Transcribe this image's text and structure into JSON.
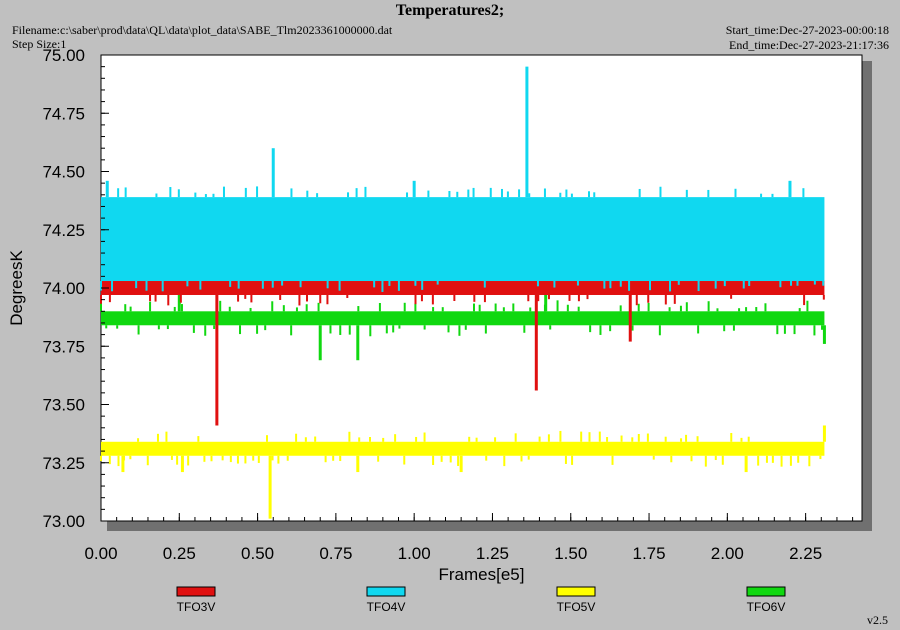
{
  "header": {
    "title": "Temperatures2;",
    "filename": "Filename:c:\\saber\\prod\\data\\QL\\data\\plot_data\\SABE_Tlm2023361000000.dat",
    "step_size": "Step Size:1",
    "start_time": "Start_time:Dec-27-2023-00:00:18",
    "end_time": "End_time:Dec-27-2023-21:17:36",
    "version": "v2.5"
  },
  "colors": {
    "background": "#c0c0c0",
    "plot_area": "#ffffff",
    "TFO3V": "#e01010",
    "TFO4V": "#10d8f0",
    "TFO5V": "#ffff00",
    "TFO6V": "#10d810"
  },
  "chart_data": {
    "type": "line",
    "title": "Temperatures2;",
    "xlabel": "Frames[e5]",
    "ylabel": "DegreesK",
    "xlim": [
      0,
      2.43
    ],
    "ylim": [
      73.0,
      75.0
    ],
    "x_ticks": [
      "0.00",
      "0.25",
      "0.50",
      "0.75",
      "1.00",
      "1.25",
      "1.50",
      "1.75",
      "2.00",
      "2.25"
    ],
    "y_ticks": [
      "73.00",
      "73.25",
      "73.50",
      "73.75",
      "74.00",
      "74.25",
      "74.50",
      "74.75",
      "75.00"
    ],
    "grid": false,
    "legend_position": "bottom",
    "series": [
      {
        "name": "TFO3V",
        "x_range": [
          0,
          2.31
        ],
        "band": [
          73.97,
          74.03
        ],
        "spikes": [
          {
            "x": 0.37,
            "y": 73.41
          },
          {
            "x": 1.39,
            "y": 73.56
          },
          {
            "x": 1.69,
            "y": 73.77
          },
          {
            "x": 0.55,
            "y": 74.1
          },
          {
            "x": 1.27,
            "y": 74.1
          },
          {
            "x": 2.07,
            "y": 74.1
          }
        ]
      },
      {
        "name": "TFO4V",
        "x_range": [
          0,
          2.31
        ],
        "band": [
          74.03,
          74.39
        ],
        "spikes": [
          {
            "x": 0.55,
            "y": 74.6
          },
          {
            "x": 1.36,
            "y": 74.95
          },
          {
            "x": 0.02,
            "y": 74.46
          },
          {
            "x": 1.0,
            "y": 74.46
          },
          {
            "x": 2.2,
            "y": 74.46
          }
        ]
      },
      {
        "name": "TFO5V",
        "x_range": [
          0,
          2.31
        ],
        "band": [
          73.28,
          73.34
        ],
        "spikes": [
          {
            "x": 0.54,
            "y": 73.01
          },
          {
            "x": 0.07,
            "y": 73.21
          },
          {
            "x": 0.26,
            "y": 73.21
          },
          {
            "x": 0.82,
            "y": 73.21
          },
          {
            "x": 1.15,
            "y": 73.21
          },
          {
            "x": 2.06,
            "y": 73.21
          },
          {
            "x": 2.31,
            "y": 73.41
          }
        ]
      },
      {
        "name": "TFO6V",
        "x_range": [
          0,
          2.31
        ],
        "band": [
          73.84,
          73.9
        ],
        "spikes": [
          {
            "x": 0.7,
            "y": 73.69
          },
          {
            "x": 0.82,
            "y": 73.69
          },
          {
            "x": 2.31,
            "y": 73.76
          },
          {
            "x": 1.42,
            "y": 74.11
          },
          {
            "x": 0.25,
            "y": 74.04
          }
        ]
      }
    ]
  }
}
